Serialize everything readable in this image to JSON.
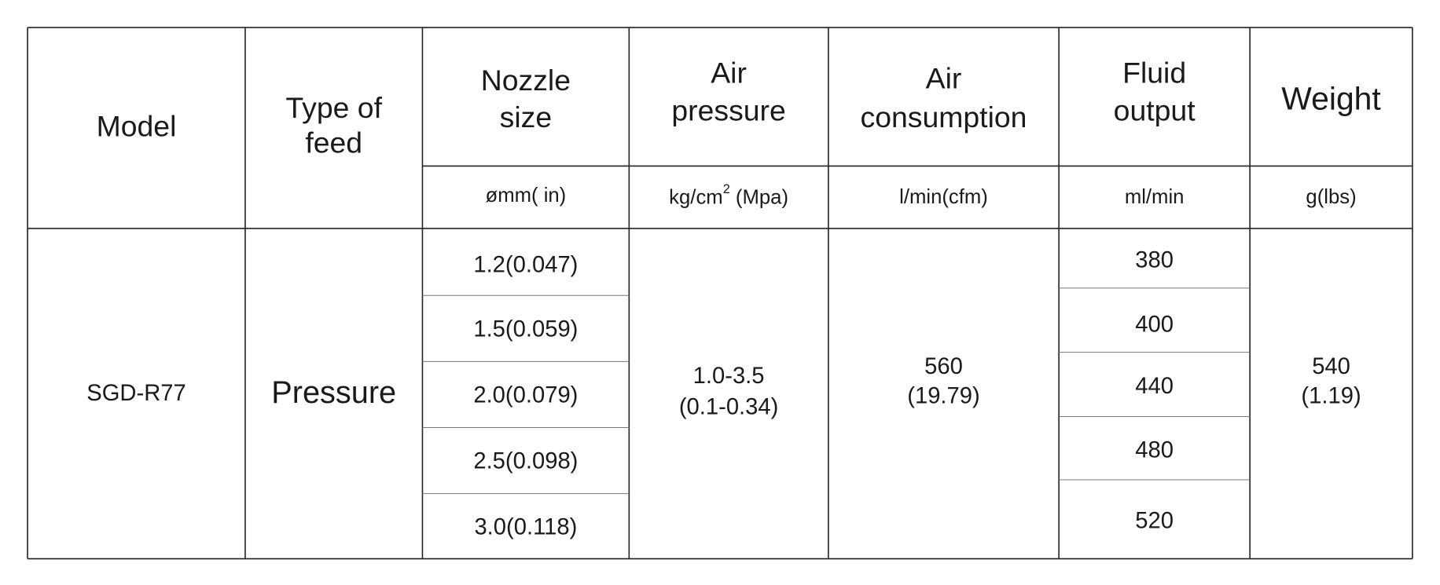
{
  "table": {
    "headers": [
      [
        "Model"
      ],
      [
        "Type  of",
        "feed"
      ],
      [
        "Nozzle",
        "size"
      ],
      [
        "Air",
        "pressure"
      ],
      [
        "Air",
        "consumption"
      ],
      [
        "Fluid",
        "output"
      ],
      [
        "Weight"
      ]
    ],
    "units": {
      "nozzle_size": "ømm( in)",
      "air_pressure": {
        "text": "kg/cm",
        "superscript": "2",
        "suffix": " (Mpa)"
      },
      "air_consumption": "l/min(cfm)",
      "fluid_output": "ml/min",
      "weight": "g(lbs)"
    },
    "model": "SGD-R77",
    "feed": "Pressure",
    "nozzle_sizes": [
      "1.2(0.047)",
      "1.5(0.059)",
      "2.0(0.079)",
      "2.5(0.098)",
      "3.0(0.118)"
    ],
    "air_pressure": [
      "1.0-3.5",
      "(0.1-0.34)"
    ],
    "air_consumption": [
      "560",
      "(19.79)"
    ],
    "fluid_output": [
      "380",
      "400",
      "440",
      "480",
      "520"
    ],
    "weight": [
      "540",
      "(1.19)"
    ]
  }
}
